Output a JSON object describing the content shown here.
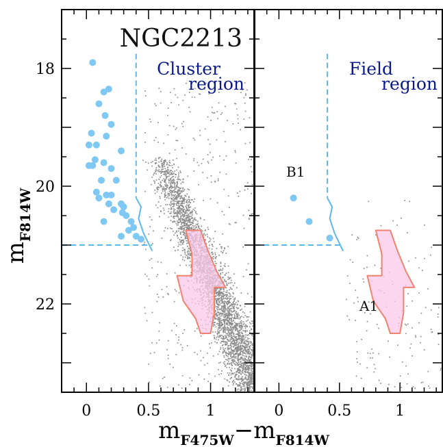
{
  "chart_data": {
    "type": "scatter",
    "xlabel_main": "m",
    "xlabel_sub": "F475W",
    "xlabel_sep": "−",
    "xlabel_main2": "m",
    "xlabel_sub2": "F814W",
    "ylabel_main": "m",
    "ylabel_sub": "F814W",
    "xlim": [
      -0.2,
      1.35
    ],
    "ylim": [
      23.5,
      17.0
    ],
    "y_inverted": true,
    "x_ticks": [
      0,
      0.5,
      1
    ],
    "x_tick_labels": [
      "0",
      "0.5",
      "1"
    ],
    "y_ticks": [
      18,
      20,
      22
    ],
    "y_tick_labels": [
      "18",
      "20",
      "22"
    ],
    "grid": false,
    "panels": [
      {
        "title": "NGC2213",
        "region_label_1": "Cluster",
        "region_label_2": "region",
        "selection_box": {
          "color_cut": 0.4,
          "mag_limit": 21.0
        },
        "blue_points": [
          [
            0.05,
            17.9
          ],
          [
            0.14,
            18.4
          ],
          [
            0.18,
            18.35
          ],
          [
            0.1,
            18.6
          ],
          [
            0.15,
            18.8
          ],
          [
            0.2,
            18.95
          ],
          [
            0.04,
            19.1
          ],
          [
            0.16,
            19.15
          ],
          [
            0.02,
            19.3
          ],
          [
            0.08,
            19.3
          ],
          [
            0.28,
            19.4
          ],
          [
            0.07,
            19.55
          ],
          [
            0.02,
            19.65
          ],
          [
            0.05,
            19.65
          ],
          [
            0.14,
            19.6
          ],
          [
            0.2,
            19.7
          ],
          [
            0.12,
            19.9
          ],
          [
            0.24,
            19.9
          ],
          [
            0.08,
            20.1
          ],
          [
            0.16,
            20.15
          ],
          [
            0.2,
            20.15
          ],
          [
            0.1,
            20.2
          ],
          [
            0.28,
            20.3
          ],
          [
            0.3,
            20.35
          ],
          [
            0.22,
            20.4
          ],
          [
            0.18,
            20.3
          ],
          [
            0.29,
            20.45
          ],
          [
            0.36,
            20.6
          ],
          [
            0.32,
            20.5
          ],
          [
            0.14,
            20.6
          ],
          [
            0.34,
            20.75
          ],
          [
            0.38,
            20.7
          ],
          [
            0.4,
            20.85
          ],
          [
            0.28,
            20.85
          ],
          [
            0.44,
            20.9
          ]
        ],
        "field_stars": {
          "count": 4200,
          "seed": 7
        },
        "red_region_polygon": [
          [
            0.8,
            20.75
          ],
          [
            0.92,
            20.75
          ],
          [
            0.98,
            21.1
          ],
          [
            1.05,
            21.45
          ],
          [
            1.12,
            21.72
          ],
          [
            1.03,
            21.72
          ],
          [
            1.03,
            22.15
          ],
          [
            1.0,
            22.5
          ],
          [
            0.92,
            22.5
          ],
          [
            0.88,
            22.25
          ],
          [
            0.78,
            21.95
          ],
          [
            0.73,
            21.52
          ],
          [
            0.85,
            21.52
          ],
          [
            0.85,
            21.15
          ]
        ]
      },
      {
        "region_label_1": "Field",
        "region_label_2": "region",
        "label_A": "A1",
        "label_B": "B1",
        "selection_box": {
          "color_cut": 0.4,
          "mag_limit": 21.0
        },
        "blue_points": [
          [
            0.12,
            20.2
          ],
          [
            0.25,
            20.6
          ],
          [
            0.42,
            20.88
          ]
        ],
        "field_stars": {
          "count": 140,
          "seed": 21
        },
        "red_region_polygon": [
          [
            0.8,
            20.75
          ],
          [
            0.92,
            20.75
          ],
          [
            0.98,
            21.1
          ],
          [
            1.05,
            21.45
          ],
          [
            1.12,
            21.72
          ],
          [
            1.03,
            21.72
          ],
          [
            1.03,
            22.15
          ],
          [
            1.0,
            22.5
          ],
          [
            0.92,
            22.5
          ],
          [
            0.88,
            22.25
          ],
          [
            0.78,
            21.95
          ],
          [
            0.73,
            21.52
          ],
          [
            0.85,
            21.52
          ],
          [
            0.85,
            21.15
          ]
        ]
      }
    ],
    "colors": {
      "blue_points": "#7ec8f3",
      "box_line": "#5bb8ef",
      "field_stars": "#8c8c8c",
      "region_fill": "#f9c8e8",
      "region_edge": "#f0826e",
      "region_text": "#0a1a8c",
      "axis": "#000000"
    }
  }
}
